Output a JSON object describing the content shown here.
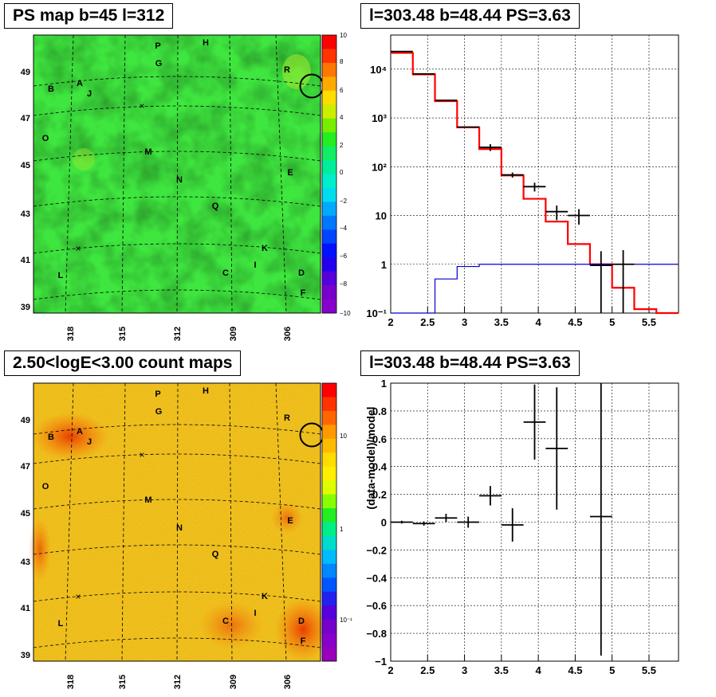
{
  "panels": {
    "ps_map": {
      "title": "PS map b=45 l=312",
      "colorbar_ticks": [
        "10",
        "8",
        "6",
        "4",
        "2",
        "0",
        "−2",
        "−4",
        "−6",
        "−8",
        "−10"
      ],
      "colorbar_colors": [
        "#ff0000",
        "#ff3300",
        "#ff7700",
        "#ffaa00",
        "#ffdd00",
        "#ccee00",
        "#77ee00",
        "#22ee22",
        "#11ee66",
        "#00ee99",
        "#00eecc",
        "#00ddee",
        "#00aaff",
        "#0077ff",
        "#0044ff",
        "#0011ff",
        "#2200ee",
        "#5500dd",
        "#7700cc",
        "#8800cc"
      ]
    },
    "count_map": {
      "title": "2.50<logE<3.00 count maps",
      "colorbar_ticks": [
        "10",
        "1",
        "10⁻¹"
      ],
      "colorbar_colors": [
        "#ff0000",
        "#ff3300",
        "#ff6600",
        "#ff9900",
        "#ffbb00",
        "#ffdd00",
        "#ffee00",
        "#ddff00",
        "#88ff00",
        "#22ee22",
        "#00ee88",
        "#00ddcc",
        "#00bbff",
        "#0088ff",
        "#0055ff",
        "#2222ee",
        "#5500dd",
        "#7700cc",
        "#8800cc",
        "#9900bb"
      ]
    },
    "spectrum": {
      "title": "l=303.48 b=48.44 PS=3.63"
    },
    "residual": {
      "title": "l=303.48 b=48.44 PS=3.63"
    }
  },
  "map_axes": {
    "y_ticks": [
      "49",
      "47",
      "45",
      "43",
      "41",
      "39"
    ],
    "x_ticks": [
      "318",
      "315",
      "312",
      "309",
      "306"
    ]
  },
  "source_labels": [
    "P",
    "H",
    "G",
    "R",
    "A",
    "B",
    "J",
    "O",
    "M",
    "E",
    "N",
    "Q",
    "K",
    "I",
    "C",
    "D",
    "L",
    "F"
  ],
  "chart_data": [
    {
      "type": "line",
      "x_ticks": [
        "2",
        "2.5",
        "3",
        "3.5",
        "4",
        "4.5",
        "5",
        "5.5"
      ],
      "y_ticks": [
        "10⁴",
        "10³",
        "10²",
        "10",
        "1",
        "10⁻¹"
      ],
      "xlim": [
        2,
        5.9
      ],
      "ylim": [
        0.1,
        50000
      ],
      "log_y": true,
      "grid": true,
      "series": [
        {
          "color": "#ff0000",
          "steps": [
            [
              2.0,
              21500
            ],
            [
              2.3,
              7800
            ],
            [
              2.6,
              2200
            ],
            [
              2.9,
              640
            ],
            [
              3.2,
              230
            ],
            [
              3.5,
              66
            ],
            [
              3.8,
              22
            ],
            [
              4.1,
              7.5
            ],
            [
              4.4,
              2.6
            ],
            [
              4.7,
              1.0
            ],
            [
              5.0,
              0.33
            ],
            [
              5.3,
              0.12
            ],
            [
              5.6,
              0.1
            ]
          ]
        },
        {
          "color": "#0000cc",
          "steps": [
            [
              2.0,
              0.1
            ],
            [
              2.3,
              0.1
            ],
            [
              2.6,
              0.5
            ],
            [
              2.9,
              0.9
            ],
            [
              3.2,
              1.0
            ],
            [
              3.5,
              1.0
            ],
            [
              5.9,
              1.0
            ]
          ]
        },
        {
          "color": "#000000",
          "points": [
            [
              2.15,
              23000,
              0.15,
              0
            ],
            [
              2.45,
              8000,
              0.15,
              0
            ],
            [
              2.75,
              2300,
              0.15,
              0
            ],
            [
              3.05,
              650,
              0.15,
              0
            ],
            [
              3.35,
              250,
              0.15,
              40
            ],
            [
              3.65,
              68,
              0.15,
              8
            ],
            [
              3.95,
              39,
              0.15,
              8
            ],
            [
              4.25,
              12,
              0.15,
              4
            ],
            [
              4.55,
              10,
              0.15,
              3.5
            ],
            [
              4.85,
              0.95,
              0.15,
              0.9
            ],
            [
              5.15,
              1.0,
              0.15,
              0.95
            ]
          ]
        }
      ]
    },
    {
      "type": "scatter",
      "x_ticks": [
        "2",
        "2.5",
        "3",
        "3.5",
        "4",
        "4.5",
        "5",
        "5.5"
      ],
      "y_ticks": [
        "1",
        "0.8",
        "0.6",
        "0.4",
        "0.2",
        "0",
        "−0.2",
        "−0.4",
        "−0.6",
        "−0.8",
        "−1"
      ],
      "ylabel": "(data-model)/model",
      "xlim": [
        2,
        5.9
      ],
      "ylim": [
        -1,
        1
      ],
      "grid": true,
      "points": [
        [
          2.15,
          0.0,
          0.15,
          0.01
        ],
        [
          2.45,
          -0.01,
          0.15,
          0.015
        ],
        [
          2.75,
          0.03,
          0.15,
          0.03
        ],
        [
          3.05,
          0.0,
          0.15,
          0.04
        ],
        [
          3.35,
          0.19,
          0.15,
          0.07
        ],
        [
          3.65,
          -0.02,
          0.15,
          0.12
        ],
        [
          3.95,
          0.72,
          0.15,
          0.27
        ],
        [
          4.25,
          0.53,
          0.15,
          0.44
        ],
        [
          4.85,
          0.04,
          0.15,
          1.0
        ]
      ]
    }
  ]
}
